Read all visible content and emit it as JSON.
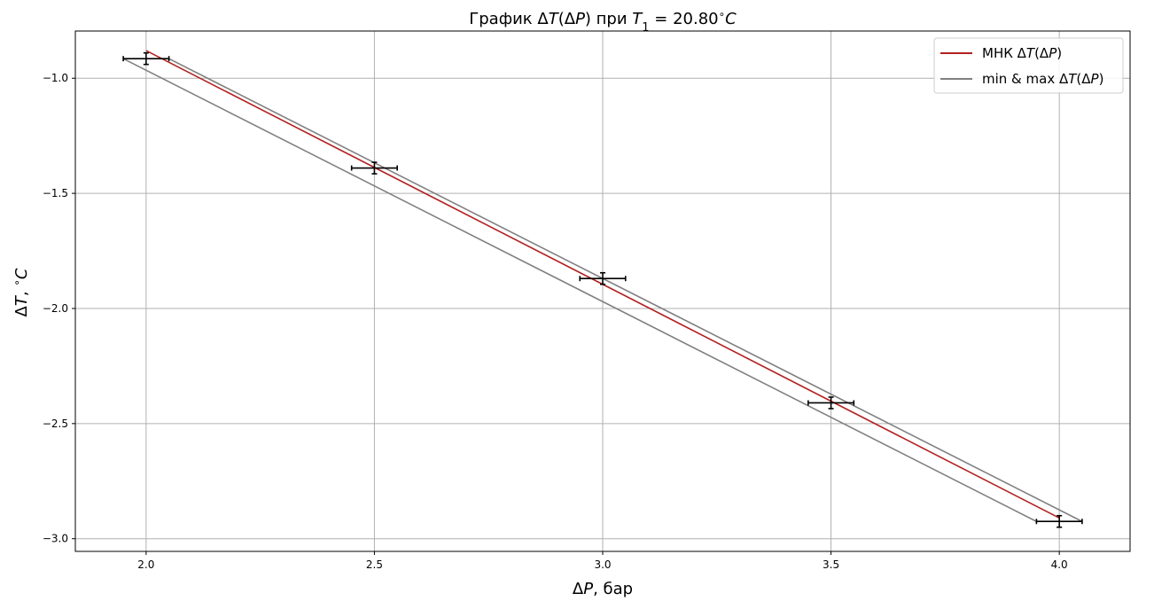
{
  "chart_data": {
    "type": "scatter",
    "title": "График ΔT(ΔP) при T₁ = 20.80°C",
    "xlabel": "ΔP, бар",
    "ylabel": "ΔT, °C",
    "xlim": [
      1.845,
      4.155
    ],
    "ylim": [
      -3.055,
      -0.795
    ],
    "grid": true,
    "legend_position": "top-right",
    "x_ticks": [
      2.0,
      2.5,
      3.0,
      3.5,
      4.0
    ],
    "x_tick_labels": [
      "2.0",
      "2.5",
      "3.0",
      "3.5",
      "4.0"
    ],
    "y_ticks": [
      -1.0,
      -1.5,
      -2.0,
      -2.5,
      -3.0
    ],
    "y_tick_labels": [
      "−1.0",
      "−1.5",
      "−2.0",
      "−2.5",
      "−3.0"
    ],
    "points": {
      "x": [
        2.0,
        2.5,
        3.0,
        3.5,
        4.0
      ],
      "y": [
        -0.915,
        -1.39,
        -1.87,
        -2.41,
        -2.925
      ],
      "x_err": [
        0.05,
        0.05,
        0.05,
        0.05,
        0.05
      ],
      "y_err": [
        0.025,
        0.025,
        0.025,
        0.025,
        0.025
      ],
      "color": "#000000"
    },
    "series": [
      {
        "name": "МНК ΔT(ΔP)",
        "color": "#b22222",
        "x": [
          2.0,
          4.0
        ],
        "y": [
          -0.88,
          -2.91
        ]
      },
      {
        "name": "min & max ΔT(ΔP)",
        "color": "#808080",
        "lines": [
          {
            "x": [
              2.05,
              4.05
            ],
            "y": [
              -0.915,
              -2.925
            ]
          },
          {
            "x": [
              1.95,
              3.95
            ],
            "y": [
              -0.915,
              -2.925
            ]
          }
        ]
      }
    ]
  }
}
